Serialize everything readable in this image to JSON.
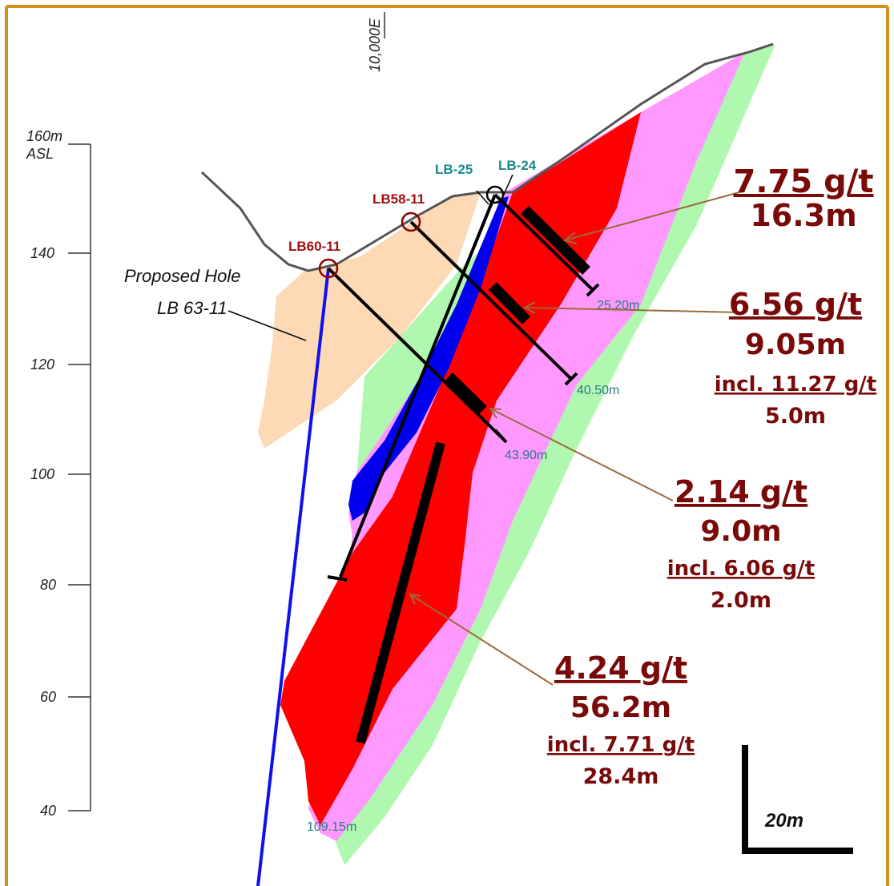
{
  "easting_label": "10,000E",
  "elevation_axis": {
    "labels": [
      "160m",
      "ASL",
      "140",
      "120",
      "100",
      "80",
      "60",
      "40"
    ]
  },
  "holes": [
    {
      "name": "LB60-11",
      "depth": "43.90m"
    },
    {
      "name": "LB58-11",
      "depth": "40.50m"
    },
    {
      "name": "LB-24",
      "depth": "25.20m"
    },
    {
      "name": "LB-25",
      "depth": "109.15m"
    }
  ],
  "proposed_hole": {
    "line1": "Proposed Hole",
    "line2": "LB 63-11"
  },
  "intercepts": [
    {
      "lines": [
        "7.75 g/t",
        "16.3m"
      ]
    },
    {
      "lines": [
        "6.56 g/t",
        "9.05m",
        "incl. 11.27 g/t",
        "5.0m"
      ]
    },
    {
      "lines": [
        "2.14 g/t",
        "9.0m",
        "incl. 6.06 g/t",
        "2.0m"
      ]
    },
    {
      "lines": [
        "4.24 g/t",
        "56.2m",
        "incl. 7.71 g/t",
        "28.4m"
      ]
    }
  ],
  "scale_bar": "20m"
}
